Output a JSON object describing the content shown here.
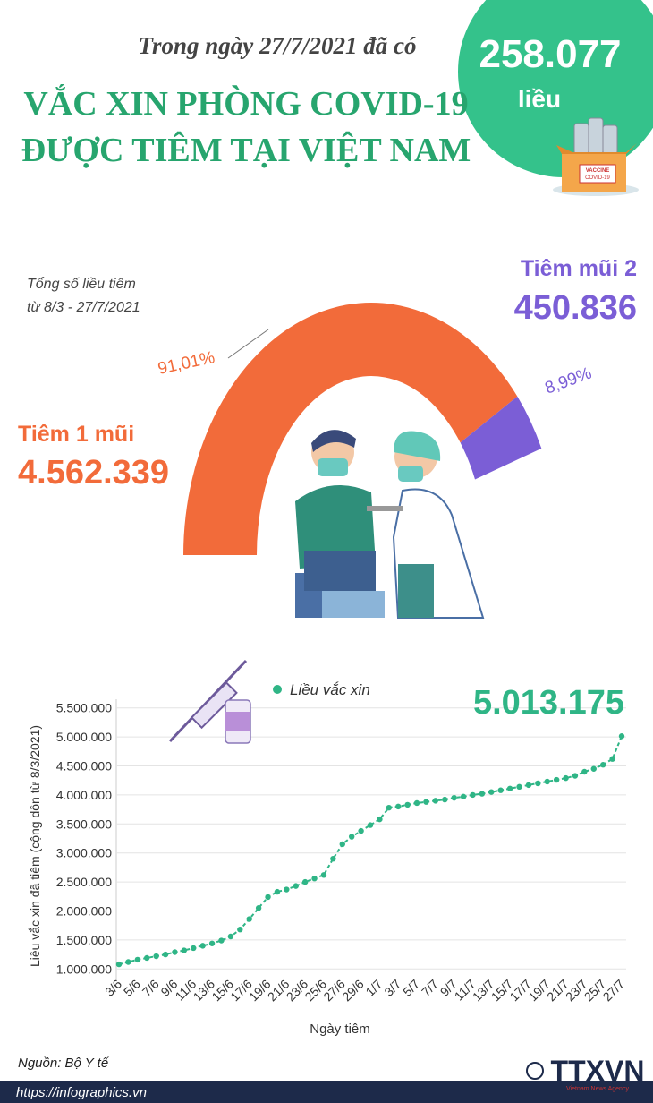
{
  "header": {
    "intro": "Trong ngày 27/7/2021 đã có",
    "title_line1": "VẮC XIN PHÒNG COVID-19",
    "title_line2": "ĐƯỢC TIÊM TẠI VIỆT NAM",
    "daily_doses": "258.077",
    "daily_unit": "liều"
  },
  "illustration": {
    "box_label_1": "VACCINE",
    "box_label_2": "COVID-19"
  },
  "summary": {
    "total_label_1": "Tổng số liều tiêm",
    "total_label_2": "từ 8/3 - 27/7/2021",
    "dose1_label": "Tiêm 1 mũi",
    "dose1_count": "4.562.339",
    "dose2_label": "Tiêm mũi 2",
    "dose2_count": "450.836"
  },
  "chart_data": [
    {
      "type": "donut",
      "values": [
        91.01,
        8.99
      ],
      "value_labels": [
        "91,01%",
        "8,99%"
      ],
      "colors": [
        "#f26b3a",
        "#7b5ed6"
      ]
    },
    {
      "type": "line",
      "ylabel": "Liều vắc xin đã tiêm (cộng dồn từ 8/3/2021)",
      "xlabel": "Ngày tiêm",
      "annotation": "5.013.175",
      "categories": [
        "3/6",
        null,
        "5/6",
        null,
        "7/6",
        null,
        "9/6",
        null,
        "11/6",
        null,
        "13/6",
        null,
        "15/6",
        null,
        "17/6",
        null,
        "19/6",
        null,
        "21/6",
        null,
        "23/6",
        null,
        "25/6",
        null,
        "27/6",
        null,
        "29/6",
        null,
        "1/7",
        null,
        "3/7",
        null,
        "5/7",
        null,
        "7/7",
        null,
        "9/7",
        null,
        "11/7",
        null,
        "13/7",
        null,
        "15/7",
        null,
        "17/7",
        null,
        "19/7",
        null,
        "21/7",
        null,
        "23/7",
        null,
        "25/7",
        null,
        "27/7"
      ],
      "series": [
        {
          "name": "Liều vắc xin",
          "color": "#2fb586",
          "values": [
            1080000,
            1120000,
            1160000,
            1190000,
            1220000,
            1250000,
            1290000,
            1320000,
            1360000,
            1400000,
            1440000,
            1490000,
            1560000,
            1680000,
            1860000,
            2050000,
            2240000,
            2330000,
            2370000,
            2430000,
            2500000,
            2560000,
            2620000,
            2900000,
            3150000,
            3280000,
            3380000,
            3480000,
            3580000,
            3780000,
            3800000,
            3830000,
            3860000,
            3880000,
            3900000,
            3920000,
            3950000,
            3970000,
            4000000,
            4020000,
            4050000,
            4080000,
            4110000,
            4140000,
            4170000,
            4200000,
            4230000,
            4260000,
            4290000,
            4330000,
            4400000,
            4450000,
            4520000,
            4620000,
            5013175
          ]
        }
      ],
      "ylim": [
        850000,
        5650000
      ],
      "yticks": [
        {
          "value": 1000000,
          "label": "1.000.000"
        },
        {
          "value": 1500000,
          "label": "1.500.000"
        },
        {
          "value": 2000000,
          "label": "2.000.000"
        },
        {
          "value": 2500000,
          "label": "2.500.000"
        },
        {
          "value": 3000000,
          "label": "3.000.000"
        },
        {
          "value": 3500000,
          "label": "3.500.000"
        },
        {
          "value": 4000000,
          "label": "4.000.000"
        },
        {
          "value": 4500000,
          "label": "4.500.000"
        },
        {
          "value": 5000000,
          "label": "5.000.000"
        },
        {
          "value": 5500000,
          "label": "5.500.000"
        }
      ]
    }
  ],
  "footer": {
    "source": "Nguồn: Bộ Y tế",
    "url": "https://infographics.vn",
    "logo": "TTXVN",
    "agency": "Vietnam News Agency"
  }
}
